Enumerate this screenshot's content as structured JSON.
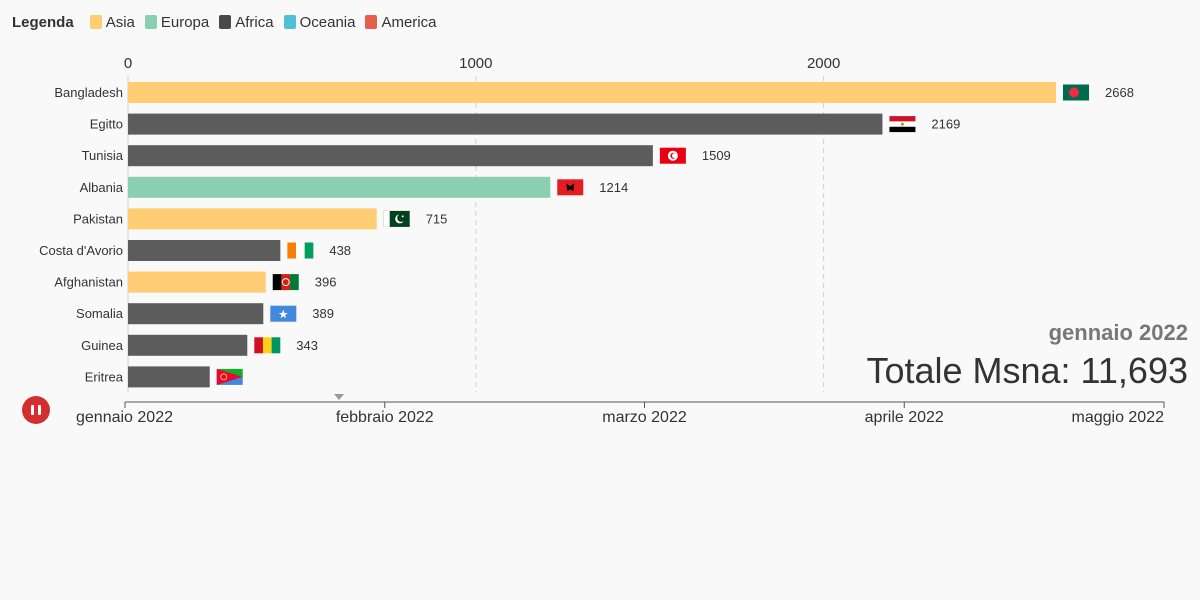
{
  "legend": {
    "title": "Legenda",
    "items": [
      {
        "label": "Asia",
        "color": "#ffcd73"
      },
      {
        "label": "Europa",
        "color": "#8acfb1"
      },
      {
        "label": "Africa",
        "color": "#4a4a4a"
      },
      {
        "label": "Oceania",
        "color": "#4fc0d6"
      },
      {
        "label": "America",
        "color": "#e85d4c"
      }
    ]
  },
  "chart_data": {
    "type": "bar",
    "orientation": "horizontal",
    "title": "",
    "xlim": [
      0,
      2668
    ],
    "x_ticks": [
      0,
      1000,
      2000
    ],
    "grid": true,
    "categories": [
      "Bangladesh",
      "Egitto",
      "Tunisia",
      "Albania",
      "Pakistan",
      "Costa d'Avorio",
      "Afghanistan",
      "Somalia",
      "Guinea",
      "Eritrea"
    ],
    "values": [
      2668,
      2169,
      1509,
      1214,
      715,
      438,
      396,
      389,
      343,
      null
    ],
    "bar_values_shown": [
      2668,
      2169,
      1509,
      1214,
      715,
      438,
      396,
      389,
      343,
      235
    ],
    "value_labels": [
      "2668",
      "2169",
      "1509",
      "1214",
      "715",
      "438",
      "396",
      "389",
      "343",
      ""
    ],
    "continent": [
      "Asia",
      "Africa",
      "Africa",
      "Europa",
      "Asia",
      "Africa",
      "Asia",
      "Africa",
      "Africa",
      "Africa"
    ],
    "flags": [
      "bangladesh-flag",
      "egypt-flag",
      "tunisia-flag",
      "albania-flag",
      "pakistan-flag",
      "ivory-coast-flag",
      "afghanistan-flag",
      "somalia-flag",
      "guinea-flag",
      "eritrea-flag"
    ]
  },
  "current_date": "gennaio 2022",
  "total": "Totale Msna: 11,693",
  "timeline": {
    "labels": [
      "gennaio 2022",
      "febbraio 2022",
      "marzo 2022",
      "aprile 2022",
      "maggio 2022"
    ],
    "position": 0.206
  },
  "colors": {
    "bar_africa": "#5c5c5c",
    "play_button": "#d32f2f"
  }
}
